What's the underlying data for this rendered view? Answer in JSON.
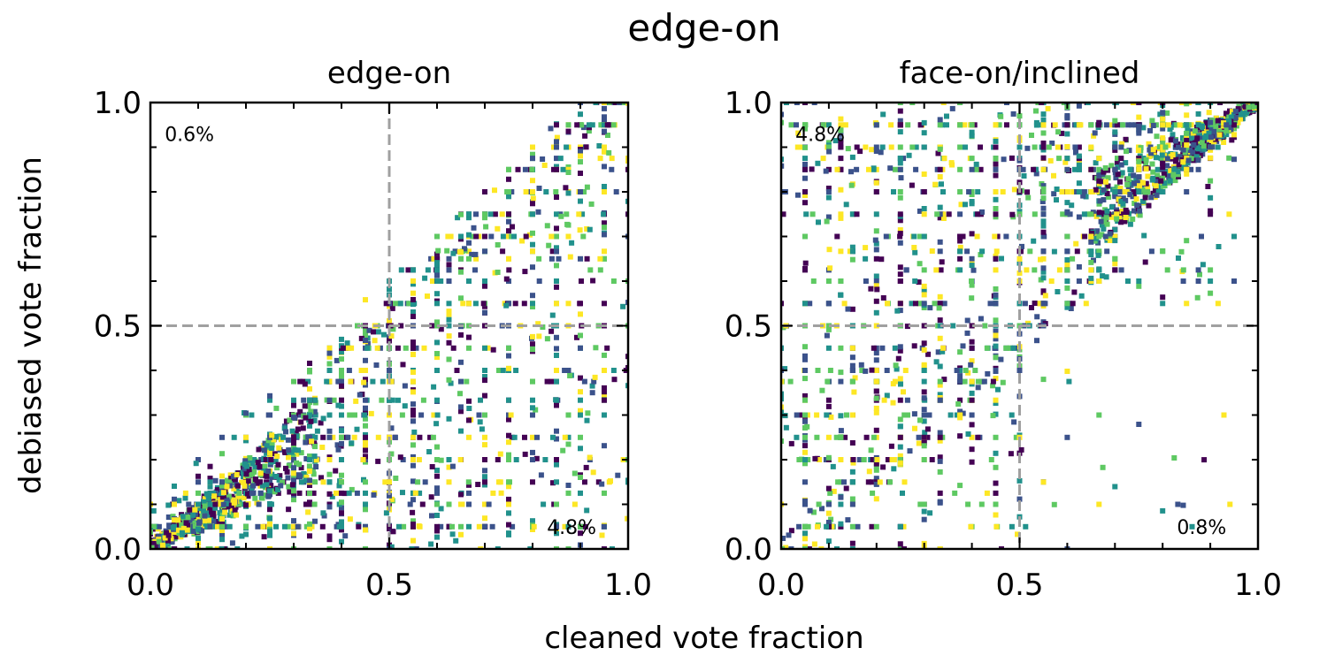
{
  "suptitle": "edge-on",
  "xlabel": "cleaned vote fraction",
  "ylabel": "debiased vote fraction",
  "colormap": [
    "#440154",
    "#3b528b",
    "#21918c",
    "#5ec962",
    "#fde725"
  ],
  "reference_line_color": "#a0a0a0",
  "chart_data": [
    {
      "type": "scatter",
      "title": "edge-on",
      "xlim": [
        0,
        1
      ],
      "ylim": [
        0,
        1
      ],
      "xticks": [
        "0.0",
        "0.5",
        "1.0"
      ],
      "yticks": [
        "0.0",
        "0.5",
        "1.0"
      ],
      "reference_lines": {
        "x": 0.5,
        "y": 0.5,
        "diagonal": true
      },
      "annotations": [
        {
          "text": "0.6%",
          "x": 0.03,
          "y": 0.93
        },
        {
          "text": "4.8%",
          "x": 0.83,
          "y": 0.05
        }
      ],
      "distribution": {
        "description": "dense cloud near origin along diagonal; majority of points below y = x",
        "fraction_upper_left": 0.006,
        "fraction_lower_right": 0.048
      },
      "points": []
    },
    {
      "type": "scatter",
      "title": "face-on/inclined",
      "xlim": [
        0,
        1
      ],
      "ylim": [
        0,
        1
      ],
      "xticks": [
        "0.0",
        "0.5",
        "1.0"
      ],
      "yticks": [
        "0.0",
        "0.5",
        "1.0"
      ],
      "reference_lines": {
        "x": 0.5,
        "y": 0.5,
        "diagonal": true
      },
      "annotations": [
        {
          "text": "4.8%",
          "x": 0.03,
          "y": 0.93
        },
        {
          "text": "0.8%",
          "x": 0.83,
          "y": 0.05
        }
      ],
      "distribution": {
        "description": "dense cloud near (1,1) along diagonal; majority of points above y = x",
        "fraction_upper_left": 0.048,
        "fraction_lower_right": 0.008
      },
      "points": []
    }
  ]
}
